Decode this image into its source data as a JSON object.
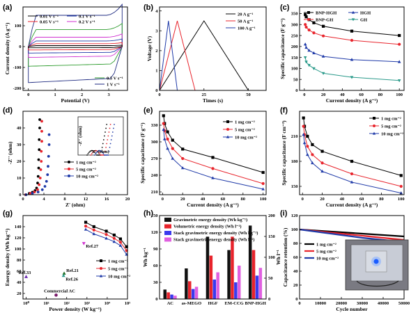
{
  "chart_data": [
    {
      "panel": "(a)",
      "type": "line",
      "xlabel": "Potential (V)",
      "ylabel": "Current density (A g⁻¹)",
      "xlim": [
        -0.2,
        3.7
      ],
      "ylim": [
        -210,
        190
      ],
      "xticks": [
        0,
        1,
        2,
        3
      ],
      "yticks": [
        -200,
        -100,
        0,
        100
      ],
      "legend_left": [
        "0.01 V s⁻¹",
        "0.05 V s⁻¹"
      ],
      "legend_mid": [
        "0.1 V s⁻¹",
        "0.2 V s⁻¹"
      ],
      "legend_bottom": [
        "0.5 V s⁻¹",
        "1 V s⁻¹"
      ],
      "series": [
        {
          "name": "0.01 V s⁻¹",
          "color": "#000000",
          "current": 5
        },
        {
          "name": "0.05 V s⁻¹",
          "color": "#e8242c",
          "current": 14
        },
        {
          "name": "0.1 V s⁻¹",
          "color": "#1f3aa8",
          "current": 27
        },
        {
          "name": "0.2 V s⁻¹",
          "color": "#d030d0",
          "current": 45
        },
        {
          "name": "0.5 V s⁻¹",
          "color": "#2a9a2a",
          "current": 82
        },
        {
          "name": "1 V s⁻¹",
          "color": "#1e2a80",
          "current": 150
        }
      ]
    },
    {
      "panel": "(b)",
      "type": "line",
      "xlabel": "Times (s)",
      "ylabel": "Voltage (V)",
      "xlim": [
        0,
        60
      ],
      "ylim": [
        0,
        4.2
      ],
      "xticks": [
        0,
        25,
        50
      ],
      "yticks": [
        0,
        1,
        2,
        3,
        4
      ],
      "series": [
        {
          "name": "20 A g⁻¹",
          "color": "#000000",
          "x": [
            0,
            25,
            50
          ],
          "y": [
            0,
            3.5,
            0
          ]
        },
        {
          "name": "50 A g⁻¹",
          "color": "#e8242c",
          "x": [
            0,
            10,
            20
          ],
          "y": [
            0,
            3.5,
            0
          ]
        },
        {
          "name": "100 A g⁻¹",
          "color": "#1f3aa8",
          "x": [
            0,
            5,
            10
          ],
          "y": [
            0,
            3.5,
            0
          ]
        }
      ]
    },
    {
      "panel": "(c)",
      "type": "line",
      "xlabel": "Current density (A g⁻¹)",
      "ylabel": "Specific capacitance (F g⁻¹)",
      "xlim": [
        -5,
        105
      ],
      "ylim": [
        0,
        380
      ],
      "xticks": [
        0,
        20,
        40,
        60,
        80,
        100
      ],
      "yticks": [
        0,
        50,
        100,
        150,
        200,
        250,
        300,
        350
      ],
      "x": [
        1,
        2,
        5,
        10,
        20,
        50,
        100
      ],
      "series": [
        {
          "name": "BNP-HGH",
          "color": "#000000",
          "marker": "square",
          "values": [
            345,
            335,
            322,
            308,
            292,
            270,
            250
          ]
        },
        {
          "name": "BNP-GH",
          "color": "#e8242c",
          "marker": "circle",
          "values": [
            300,
            288,
            275,
            262,
            248,
            228,
            210
          ]
        },
        {
          "name": "HGH",
          "color": "#1f3aa8",
          "marker": "triangle",
          "values": [
            210,
            195,
            182,
            170,
            155,
            140,
            130
          ]
        },
        {
          "name": "GH",
          "color": "#2a9a8a",
          "marker": "triangle-down",
          "values": [
            150,
            130,
            115,
            100,
            78,
            60,
            45
          ]
        }
      ]
    },
    {
      "panel": "(d)",
      "type": "scatter",
      "xlabel": "Z' (ohm)",
      "ylabel": "-Z'' (ohm)",
      "xlim": [
        0,
        20
      ],
      "ylim": [
        0,
        50
      ],
      "xticks": [
        0,
        4,
        8,
        12,
        16,
        20
      ],
      "yticks": [
        0,
        10,
        20,
        30,
        40
      ],
      "inset_xlabel": "Z' (ohm)",
      "inset_ylabel": "-Z'' (ohm)",
      "series": [
        {
          "name": "1 mg cm⁻²",
          "color": "#000000",
          "x": [
            0.5,
            1.2,
            1.8,
            2.3,
            2.6,
            2.8,
            2.9,
            3.0,
            3.0,
            3.1,
            3.1,
            3.2,
            3.2
          ],
          "y": [
            0,
            0.8,
            1.5,
            2.5,
            4,
            7,
            11,
            16,
            21,
            27,
            33,
            40,
            45
          ]
        },
        {
          "name": "5 mg cm⁻²",
          "color": "#e8242c",
          "x": [
            0.5,
            1.4,
            2.2,
            2.8,
            3.1,
            3.3,
            3.4,
            3.5,
            3.5,
            3.6,
            3.6,
            3.6
          ],
          "y": [
            0,
            0.8,
            1.6,
            3,
            6,
            10,
            15,
            20,
            26,
            32,
            38,
            44
          ]
        },
        {
          "name": "10 mg cm⁻²",
          "color": "#1f3aa8",
          "x": [
            0.6,
            1.8,
            2.9,
            3.7,
            4.2,
            4.5,
            4.7,
            4.8,
            4.9,
            5.0,
            5.0
          ],
          "y": [
            0,
            0.8,
            1.6,
            3,
            5,
            8,
            12,
            17,
            23,
            30,
            36
          ]
        }
      ]
    },
    {
      "panel": "(e)",
      "type": "line",
      "xlabel": "Current density (A g⁻¹)",
      "ylabel": "Specific capacitance (F g⁻¹)",
      "xlim": [
        -3,
        103
      ],
      "ylim": [
        205,
        355
      ],
      "xticks": [
        0,
        20,
        40,
        60,
        80,
        100
      ],
      "yticks": [
        210,
        240,
        270,
        300,
        330
      ],
      "x": [
        1,
        2,
        5,
        10,
        20,
        50,
        100
      ],
      "series": [
        {
          "name": "1 mg cm⁻²",
          "color": "#000000",
          "marker": "square",
          "values": [
            347,
            333,
            318,
            303,
            287,
            272,
            245
          ]
        },
        {
          "name": "5 mg cm⁻²",
          "color": "#e8242c",
          "marker": "circle",
          "values": [
            333,
            320,
            305,
            288,
            270,
            252,
            225
          ]
        },
        {
          "name": "10 mg cm⁻²",
          "color": "#1f3aa8",
          "marker": "triangle",
          "values": [
            322,
            305,
            288,
            270,
            253,
            235,
            215
          ]
        }
      ]
    },
    {
      "panel": "(f)",
      "type": "line",
      "xlabel": "Current density (A g⁻¹)",
      "ylabel": "Specific capacitance (F cm⁻³)",
      "xlim": [
        -3,
        103
      ],
      "ylim": [
        140,
        240
      ],
      "xticks": [
        0,
        20,
        40,
        60,
        80,
        100
      ],
      "yticks": [
        150,
        180,
        210
      ],
      "x": [
        1,
        2,
        5,
        10,
        20,
        50,
        100
      ],
      "series": [
        {
          "name": "1 mg cm⁻²",
          "color": "#000000",
          "marker": "square",
          "values": [
            232,
            222,
            210,
            200,
            192,
            180,
            163
          ]
        },
        {
          "name": "5 mg cm⁻²",
          "color": "#e8242c",
          "marker": "circle",
          "values": [
            222,
            212,
            198,
            188,
            178,
            165,
            150
          ]
        },
        {
          "name": "10 mg cm⁻²",
          "color": "#1f3aa8",
          "marker": "triangle",
          "values": [
            212,
            202,
            188,
            178,
            168,
            155,
            142
          ]
        }
      ]
    },
    {
      "panel": "(g)",
      "type": "scatter",
      "xlabel": "Power density (W kg⁻¹)",
      "ylabel": "Energy density (Wh kg⁻¹)",
      "xscale": "log",
      "xlim": [
        0.7,
        100000
      ],
      "ylim": [
        10,
        160
      ],
      "xticks": [
        1,
        10,
        100,
        1000,
        10000,
        100000
      ],
      "xticklabels": [
        "10⁰",
        "10¹",
        "10²",
        "10³",
        "10⁴",
        "10⁵"
      ],
      "yticks": [
        20,
        40,
        60,
        80,
        100,
        120,
        140
      ],
      "x": [
        870,
        2200,
        9000,
        22000,
        45000,
        90000
      ],
      "series": [
        {
          "name": "1 mg cm⁻²",
          "color": "#000000",
          "marker": "square",
          "values": [
            148,
            140,
            132,
            125,
            118,
            104
          ]
        },
        {
          "name": "5 mg cm⁻²",
          "color": "#e8242c",
          "marker": "circle",
          "values": [
            141,
            134,
            126,
            119,
            112,
            97
          ]
        },
        {
          "name": "10 mg cm⁻²",
          "color": "#1f3aa8",
          "marker": "triangle",
          "values": [
            135,
            127,
            119,
            113,
            106,
            90
          ]
        }
      ],
      "references": [
        {
          "name": "Ref.27",
          "color": "#d030d0",
          "x": 700,
          "y": 110
        },
        {
          "name": "Ref.21",
          "color": "#1f6a1f",
          "x": 75,
          "y": 56
        },
        {
          "name": "Ref.26",
          "color": "#2a9a8a",
          "x": 70,
          "y": 52
        },
        {
          "name": "Ref.33",
          "color": "#6a2ab0",
          "x": 1,
          "y": 50
        },
        {
          "name": "Commercial AC",
          "color": "#7a1a6a",
          "x": 30,
          "y": 17
        }
      ]
    },
    {
      "panel": "(h)",
      "type": "bar",
      "categories": [
        "AC",
        "as-MEGO",
        "HGF",
        "EM-CCG",
        "BNP-HGH"
      ],
      "ylabel_left": "Wh kg⁻¹",
      "ylabel_right": "Wh l⁻¹",
      "ylim_left": [
        0,
        150
      ],
      "ylim_right": [
        0,
        200
      ],
      "yticks_left": [
        0,
        30,
        60,
        90,
        120,
        150
      ],
      "yticks_right": [
        0,
        50,
        100,
        150,
        200
      ],
      "series": [
        {
          "name": "Gravimetric energy density (Wh kg⁻¹)",
          "color": "#111111",
          "values": [
            17,
            55,
            112,
            88,
            132
          ]
        },
        {
          "name": "Volumetric energy density (Wh l⁻¹)",
          "color": "#e8242c",
          "values": [
            12,
            32,
            78,
            112,
            88
          ]
        },
        {
          "name": "Stack gravimetric energy density (Wh kg⁻¹)",
          "color": "#3a3aee",
          "values": [
            8,
            18,
            35,
            30,
            42
          ]
        },
        {
          "name": "Stack gravimetric energy density (Wh l⁻¹)",
          "color": "#e060e0",
          "values": [
            6,
            22,
            48,
            60,
            56
          ]
        }
      ]
    },
    {
      "panel": "(i)",
      "type": "line",
      "xlabel": "Cycle number",
      "ylabel": "Capacitance retention (%)",
      "xlim": [
        0,
        50000
      ],
      "ylim": [
        0,
        120
      ],
      "xticks": [
        0,
        10000,
        20000,
        30000,
        40000,
        50000
      ],
      "yticks": [
        0,
        20,
        40,
        60,
        80,
        100,
        120
      ],
      "series": [
        {
          "name": "1 mg cm⁻²",
          "color": "#000000",
          "x": [
            0,
            10000,
            20000,
            30000,
            40000,
            50000
          ],
          "values": [
            100,
            98,
            96,
            94,
            92,
            90
          ]
        },
        {
          "name": "5 mg cm⁻²",
          "color": "#e8242c",
          "x": [
            0,
            10000,
            20000,
            30000,
            40000,
            50000
          ],
          "values": [
            100,
            97,
            94,
            91,
            88,
            85
          ]
        },
        {
          "name": "10 mg cm⁻²",
          "color": "#1f3aa8",
          "x": [
            0,
            10000,
            20000,
            30000,
            40000,
            50000
          ],
          "values": [
            100,
            96,
            92,
            88,
            85,
            82
          ]
        }
      ]
    }
  ]
}
